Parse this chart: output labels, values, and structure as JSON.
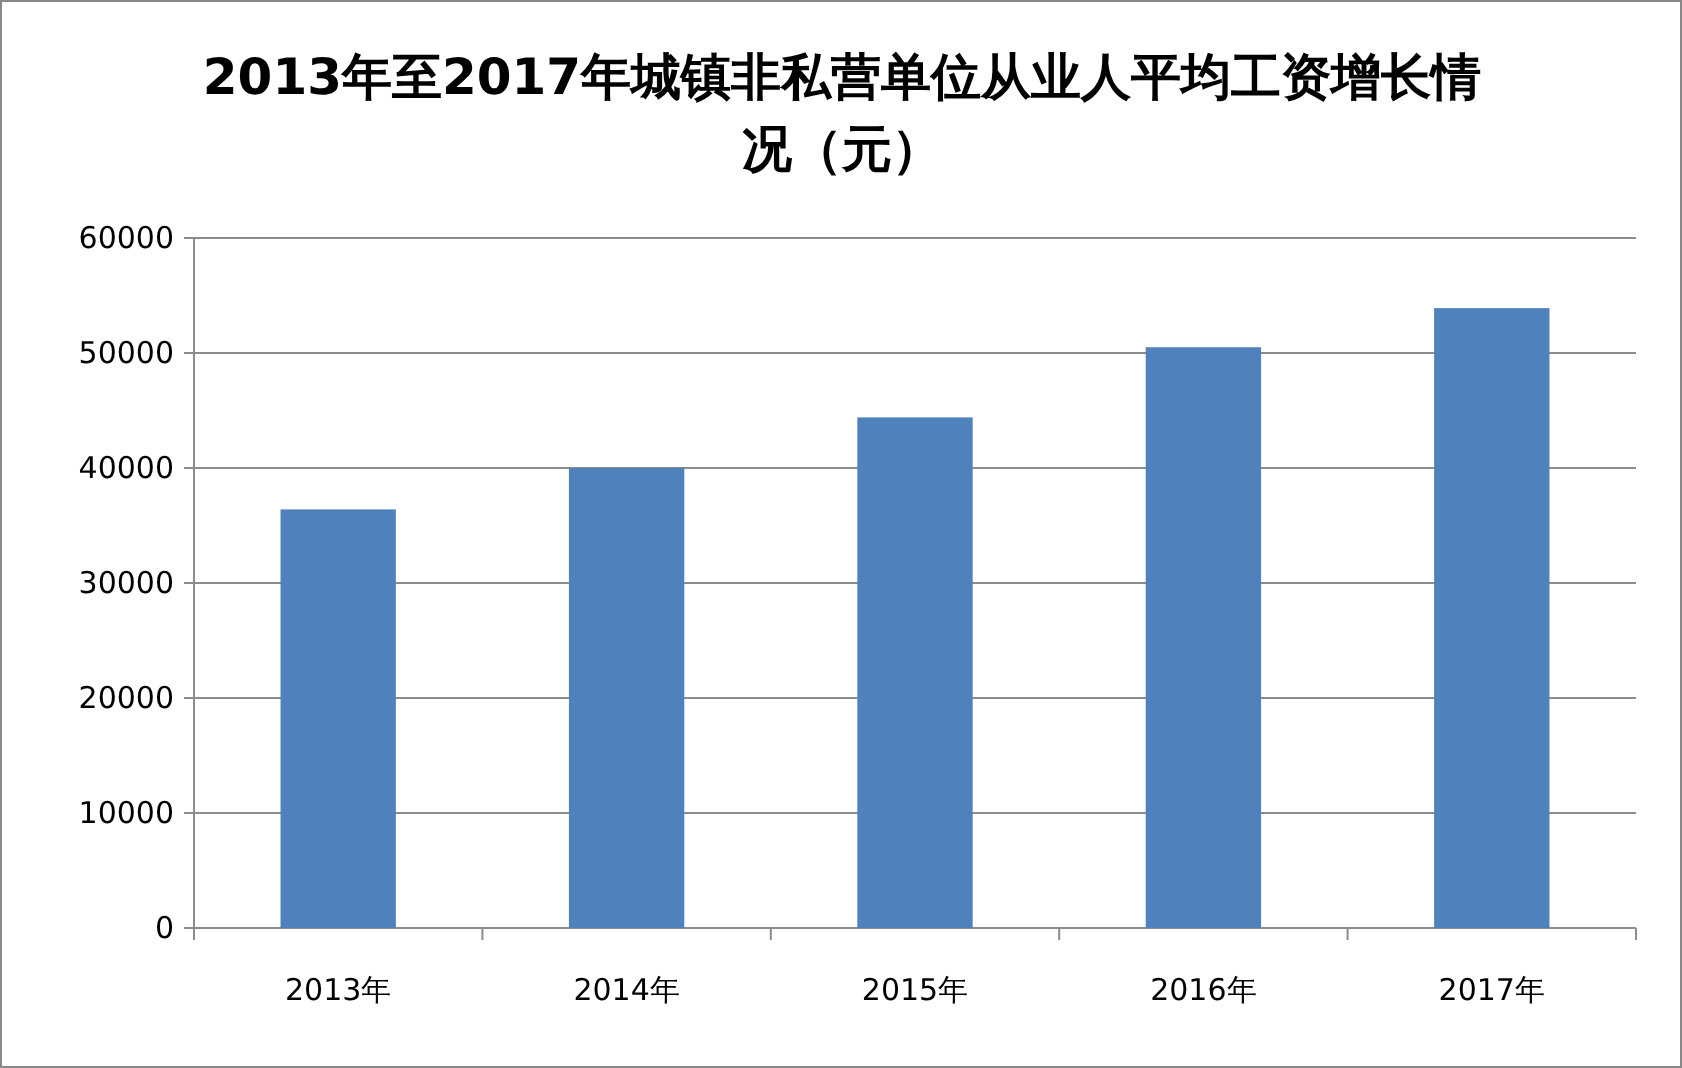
{
  "chart_data": {
    "type": "bar",
    "title": "2013年至2017年城镇非私营单位从业人平均工资增长情况（元）",
    "categories": [
      "2013年",
      "2014年",
      "2015年",
      "2016年",
      "2017年"
    ],
    "values": [
      36400,
      40000,
      44400,
      50500,
      53900
    ],
    "color": "#4f81bd",
    "ylim": [
      0,
      60000
    ],
    "yticks": [
      0,
      10000,
      20000,
      30000,
      40000,
      50000,
      60000
    ],
    "grid": "y"
  }
}
